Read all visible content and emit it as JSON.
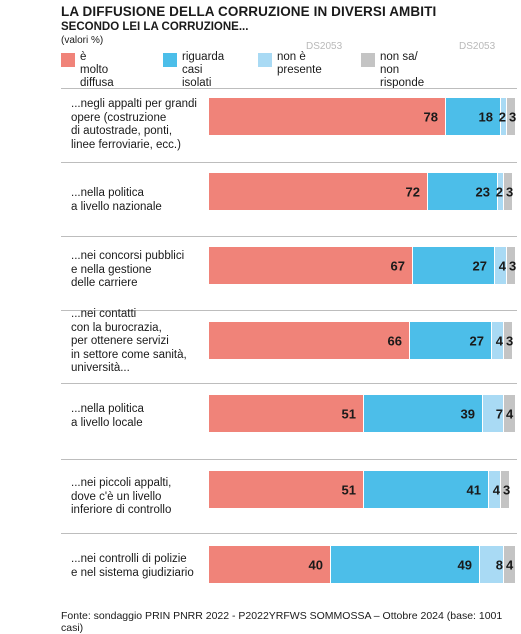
{
  "title": "LA DIFFUSIONE DELLA CORRUZIONE IN DIVERSI AMBITI",
  "subtitle": "SECONDO LEI LA CORRUZIONE...",
  "note": "(valori %)",
  "watermark": "DS2053",
  "footer": "Fonte: sondaggio PRIN PNRR 2022 - P2022YRFWS SOMMOSSA – Ottobre 2024 (base: 1001 casi)",
  "colors": {
    "very_widespread": "#f08379",
    "isolated_cases": "#4cbee9",
    "not_present": "#a9daf4",
    "no_answer": "#c4c4c4"
  },
  "chart_data": {
    "type": "bar",
    "orientation": "horizontal",
    "stacked": true,
    "xlim": [
      0,
      100
    ],
    "legend_position": "top",
    "grid": false,
    "categories": [
      "...negli appalti per grandi\nopere (costruzione\ndi autostrade, ponti,\nlinee ferroviarie, ecc.)",
      "...nella politica\na livello nazionale",
      "...nei concorsi pubblici\ne nella gestione\ndelle carriere",
      "...nei contatti\ncon la burocrazia,\nper ottenere servizi\nin settore come sanità,\nuniversità...",
      "...nella politica\na livello locale",
      "...nei piccoli appalti,\ndove c'è un livello\ninferiore di controllo",
      "...nei controlli di polizie\ne nel sistema giudiziario"
    ],
    "series": [
      {
        "name": "è molto\ndiffusa",
        "color": "#f08379",
        "values": [
          78,
          72,
          67,
          66,
          51,
          51,
          40
        ]
      },
      {
        "name": "riguarda\ncasi isolati",
        "color": "#4cbee9",
        "values": [
          18,
          23,
          27,
          27,
          39,
          41,
          49
        ]
      },
      {
        "name": "non è\npresente",
        "color": "#a9daf4",
        "values": [
          2,
          2,
          4,
          4,
          7,
          4,
          8
        ]
      },
      {
        "name": "non sa/\nnon risponde",
        "color": "#c4c4c4",
        "values": [
          3,
          3,
          3,
          3,
          4,
          3,
          4
        ]
      }
    ]
  }
}
